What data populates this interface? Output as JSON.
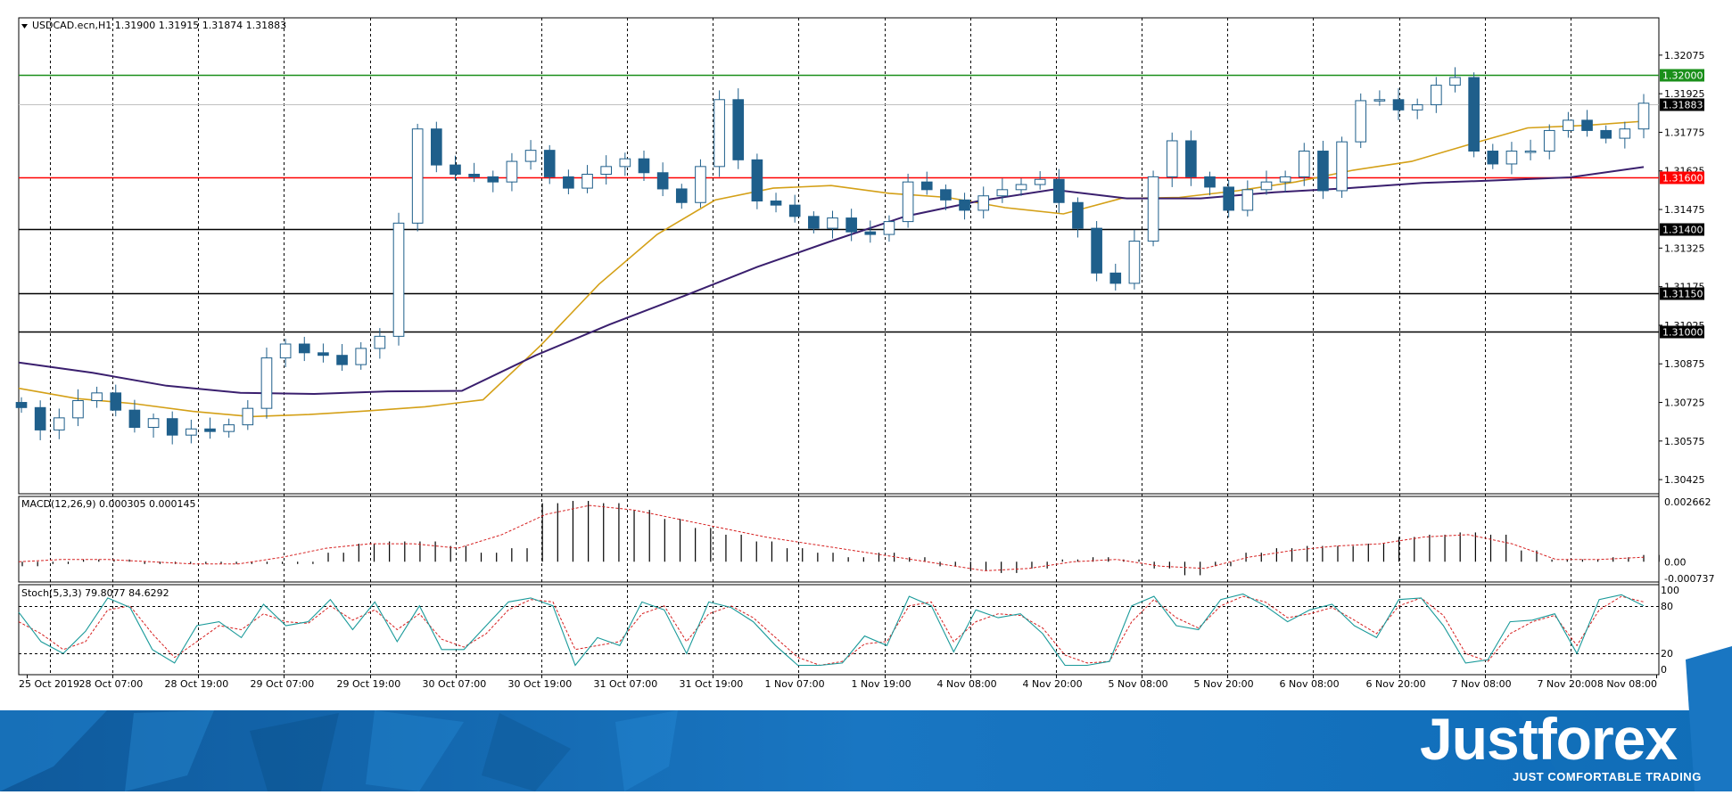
{
  "chart_data": [
    {
      "type": "candlestick",
      "header": "USDCAD.ecn,H1  1.31900 1.31915 1.31874 1.31883",
      "symbol": "USDCAD.ecn",
      "timeframe": "H1",
      "ohlc_last": {
        "open": 1.319,
        "high": 1.31915,
        "low": 1.31874,
        "close": 1.31883
      },
      "ylim": [
        1.3037,
        1.3222
      ],
      "y_ticks": [
        1.32075,
        1.31925,
        1.31775,
        1.31625,
        1.31475,
        1.31325,
        1.31175,
        1.31025,
        1.30875,
        1.30725,
        1.30575,
        1.30425
      ],
      "y_tick_labels": [
        "1.32075",
        "1.31925",
        "1.31775",
        "1.31625",
        "1.31475",
        "1.31325",
        "1.31175",
        "1.31025",
        "1.30875",
        "1.30725",
        "1.30575",
        "1.30425"
      ],
      "x_labels": [
        "25 Oct 2019",
        "28 Oct 07:00",
        "28 Oct 19:00",
        "29 Oct 07:00",
        "29 Oct 19:00",
        "30 Oct 07:00",
        "30 Oct 19:00",
        "31 Oct 07:00",
        "31 Oct 19:00",
        "1 Nov 07:00",
        "1 Nov 19:00",
        "4 Nov 08:00",
        "4 Nov 20:00",
        "5 Nov 08:00",
        "5 Nov 20:00",
        "6 Nov 08:00",
        "6 Nov 20:00",
        "7 Nov 08:00",
        "7 Nov 20:00",
        "8 Nov 08:00"
      ],
      "horizontal_levels": [
        {
          "value": 1.32,
          "label": "1.32000",
          "color": "#1a8f1a"
        },
        {
          "value": 1.31883,
          "label": "1.31883",
          "color": "#c0c0c0"
        },
        {
          "value": 1.316,
          "label": "1.31600",
          "color": "#ff0000"
        },
        {
          "value": 1.314,
          "label": "1.31400",
          "color": "#000000"
        },
        {
          "value": 1.3115,
          "label": "1.31150",
          "color": "#000000"
        },
        {
          "value": 1.31,
          "label": "1.31000",
          "color": "#000000"
        }
      ],
      "series": [
        {
          "kind": "close",
          "color": "#1f5f8b",
          "values": [
            1.30705,
            1.30618,
            1.30665,
            1.30732,
            1.30762,
            1.30695,
            1.30628,
            1.30662,
            1.30598,
            1.30622,
            1.30612,
            1.30638,
            1.30702,
            1.30898,
            1.30952,
            1.30918,
            1.30908,
            1.30872,
            1.30935,
            1.30982,
            1.31422,
            1.31788,
            1.31648,
            1.31612,
            1.31602,
            1.31582,
            1.31662,
            1.31705,
            1.31602,
            1.31558,
            1.31612,
            1.31642,
            1.31672,
            1.31618,
            1.31555,
            1.31502,
            1.31642,
            1.31902,
            1.31668,
            1.31508,
            1.31492,
            1.31448,
            1.31402,
            1.31442,
            1.31388,
            1.31378,
            1.31428,
            1.31582,
            1.31552,
            1.31512,
            1.31472,
            1.31528,
            1.31552,
            1.31572,
            1.31592,
            1.31502,
            1.31402,
            1.31228,
            1.31188,
            1.31352,
            1.31602,
            1.31742,
            1.31602,
            1.31562,
            1.31472,
            1.31552,
            1.31582,
            1.31602,
            1.31702,
            1.31548,
            1.31738,
            1.31898,
            1.31902,
            1.31862,
            1.31882,
            1.31958,
            1.31988,
            1.31702,
            1.31652,
            1.31702,
            1.31702,
            1.31782,
            1.31822,
            1.31782,
            1.31752,
            1.31788,
            1.31888
          ]
        }
      ],
      "ma_fast": {
        "color": "#d4a017",
        "values": [
          1.3078,
          1.3074,
          1.3072,
          1.3069,
          1.3067,
          1.30678,
          1.30692,
          1.30708,
          1.30735,
          1.30948,
          1.31185,
          1.31378,
          1.31512,
          1.31558,
          1.31568,
          1.31538,
          1.31522,
          1.31482,
          1.31458,
          1.31518,
          1.31522,
          1.31548,
          1.31582,
          1.31628,
          1.31662,
          1.31728,
          1.31792,
          1.31802,
          1.31818
        ]
      },
      "ma_slow": {
        "color": "#3a1f6e",
        "values": [
          1.3088,
          1.3084,
          1.3079,
          1.30762,
          1.30758,
          1.30768,
          1.3077,
          1.30908,
          1.31028,
          1.31138,
          1.31252,
          1.31352,
          1.31448,
          1.31508,
          1.31552,
          1.31518,
          1.31518,
          1.31542,
          1.31558,
          1.31578,
          1.31588,
          1.316,
          1.3164
        ]
      }
    },
    {
      "type": "bar",
      "header": "MACD(12,26,9) 0.000305 0.000145",
      "name": "MACD(12,26,9)",
      "macd": 0.000305,
      "signal": 0.000145,
      "ylim": [
        -0.0009,
        0.0029
      ],
      "y_ticks": [
        0.002662,
        0.0,
        -0.000737
      ],
      "y_tick_labels": [
        "0.002662",
        "0.00",
        "-0.000737"
      ],
      "histogram": [
        -0.0002,
        -0.0001,
        0.0001,
        0.0001,
        -0.0001,
        -0.0001,
        -0.0001,
        -0.0001,
        -0.0001,
        -0.0001,
        0.0004,
        0.0008,
        0.0009,
        0.0009,
        0.0007,
        0.0004,
        0.0006,
        0.0026,
        0.0027,
        0.0026,
        0.0023,
        0.0019,
        0.0015,
        0.0012,
        0.0009,
        0.0006,
        0.0004,
        0.0002,
        0.0004,
        0.0002,
        -0.0002,
        -0.0004,
        -0.0005,
        -0.0003,
        0.0001,
        0.0002,
        0.0001,
        -0.0003,
        -0.0006,
        -0.0002,
        0.0004,
        0.0006,
        0.0007,
        0.0007,
        0.0008,
        0.0011,
        0.0012,
        0.0013,
        0.0012,
        0.0005,
        0.0001,
        0.0001,
        0.0002,
        0.0003
      ],
      "signal_line": [
        0.0,
        0.0001,
        0.0001,
        0.0,
        -0.0001,
        -0.0001,
        0.0002,
        0.0006,
        0.0008,
        0.0008,
        0.0006,
        0.0012,
        0.0021,
        0.0025,
        0.0023,
        0.0019,
        0.0015,
        0.0011,
        0.0008,
        0.0005,
        0.0002,
        -0.0001,
        -0.0004,
        -0.0003,
        0.0,
        0.0001,
        -0.0002,
        -0.0003,
        0.0002,
        0.0005,
        0.0007,
        0.0008,
        0.0011,
        0.0012,
        0.0008,
        0.0001,
        0.0001,
        0.0002
      ]
    },
    {
      "type": "line",
      "header": "Stoch(5,3,3) 79.8077 84.6292",
      "name": "Stoch(5,3,3)",
      "main": 79.8077,
      "signal": 84.6292,
      "ylim": [
        0,
        100
      ],
      "y_ticks": [
        100,
        80,
        20,
        0
      ],
      "y_tick_labels": [
        "100",
        "80",
        "20",
        "0"
      ],
      "levels": [
        80,
        20
      ],
      "k_line": {
        "color": "#1a9a9a",
        "values": [
          72,
          35,
          20,
          48,
          90,
          78,
          25,
          8,
          55,
          60,
          40,
          82,
          55,
          60,
          88,
          50,
          85,
          35,
          80,
          25,
          25,
          55,
          85,
          90,
          80,
          5,
          40,
          30,
          85,
          75,
          20,
          85,
          78,
          60,
          30,
          5,
          5,
          8,
          42,
          30,
          92,
          80,
          22,
          75,
          65,
          70,
          45,
          5,
          5,
          10,
          80,
          92,
          55,
          50,
          88,
          95,
          80,
          60,
          75,
          82,
          55,
          40,
          88,
          90,
          55,
          8,
          12,
          60,
          62,
          70,
          20,
          88,
          94,
          80
        ]
      },
      "d_line": {
        "color": "#d62020",
        "values": [
          60,
          45,
          25,
          35,
          75,
          80,
          45,
          15,
          35,
          55,
          50,
          70,
          60,
          58,
          80,
          62,
          75,
          50,
          70,
          38,
          28,
          45,
          75,
          88,
          85,
          25,
          30,
          35,
          70,
          80,
          35,
          70,
          80,
          65,
          40,
          15,
          5,
          10,
          32,
          35,
          80,
          85,
          35,
          60,
          70,
          68,
          52,
          18,
          8,
          10,
          60,
          88,
          65,
          52,
          80,
          92,
          85,
          65,
          70,
          78,
          62,
          45,
          80,
          90,
          68,
          20,
          10,
          45,
          60,
          68,
          30,
          75,
          92,
          85
        ]
      }
    }
  ],
  "brand": {
    "name": "Justforex",
    "tagline": "JUST COMFORTABLE TRADING"
  }
}
